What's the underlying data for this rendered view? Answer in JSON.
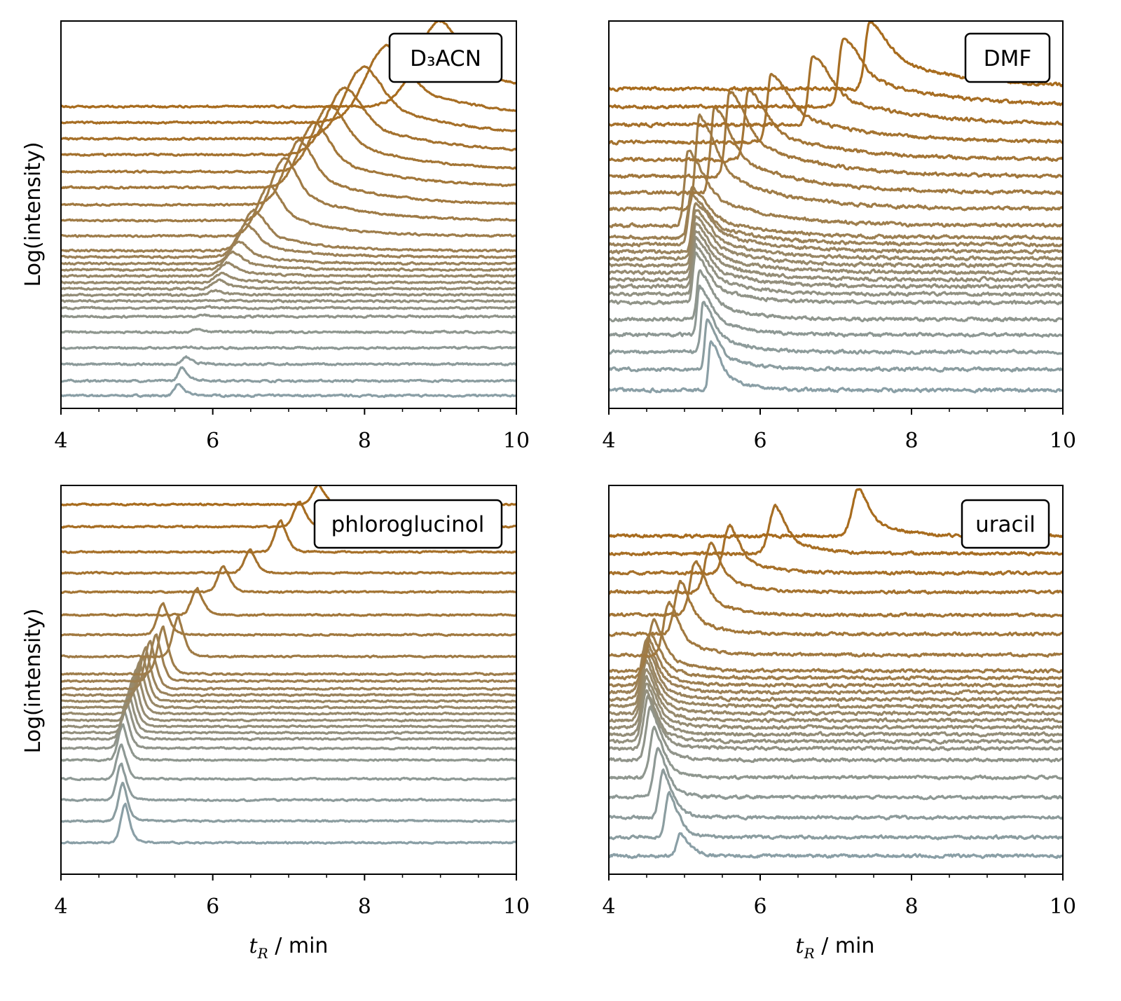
{
  "colors": {
    "first_trace": "#8a9fa6",
    "last_trace": "#a86c1e"
  },
  "chart_data": [
    {
      "type": "line",
      "legend": "D₃ACN",
      "legend_placement": "top-right",
      "xlabel": "t_R / min",
      "ylabel": "Log(intensity)",
      "xlim": [
        4,
        10
      ],
      "xticks": [
        "4",
        "6",
        "8",
        "10"
      ],
      "ylim": [
        0,
        100
      ],
      "grid": false,
      "traces": {
        "baseline": [
          3.3,
          7.1,
          11.4,
          15.6,
          19.7,
          23.7,
          25.9,
          27.7,
          29.3,
          30.9,
          32.5,
          34.2,
          35.8,
          37.4,
          39.1,
          40.7,
          44.5,
          48.5,
          52.6,
          57.0,
          61.1,
          65.5,
          69.6,
          73.8,
          77.9
        ],
        "peak_time": [
          5.55,
          5.6,
          5.65,
          5.72,
          5.8,
          5.87,
          5.93,
          5.98,
          6.03,
          6.08,
          6.13,
          6.2,
          6.27,
          6.35,
          6.45,
          6.55,
          6.75,
          6.95,
          7.15,
          7.35,
          7.55,
          7.75,
          8.0,
          8.3,
          9.0
        ],
        "peak_apex": [
          6.3,
          10.5,
          13.2,
          15.9,
          20.4,
          24.1,
          26.2,
          28.0,
          30.4,
          33.1,
          34.9,
          37.6,
          40.3,
          43.0,
          47.5,
          51.2,
          57.5,
          64.7,
          69.2,
          73.7,
          78.3,
          82.8,
          88.2,
          93.6,
          100
        ]
      }
    },
    {
      "type": "line",
      "legend": "DMF",
      "legend_placement": "top-right",
      "xlabel": "t_R / min",
      "ylabel": "",
      "xlim": [
        4,
        10
      ],
      "xticks": [
        "4",
        "6",
        "8",
        "10"
      ],
      "ylim": [
        0,
        100
      ],
      "grid": false,
      "traces": {
        "baseline": [
          4.7,
          10.1,
          14.6,
          19.0,
          23.0,
          27.3,
          29.5,
          31.5,
          33.3,
          35.1,
          36.9,
          38.7,
          40.5,
          42.3,
          44.1,
          47.2,
          51.5,
          55.7,
          59.9,
          64.2,
          68.7,
          73.2,
          77.9,
          82.5
        ],
        "peak_time": [
          5.35,
          5.3,
          5.25,
          5.2,
          5.2,
          5.15,
          5.15,
          5.15,
          5.15,
          5.15,
          5.15,
          5.15,
          5.15,
          5.1,
          5.1,
          5.05,
          5.2,
          5.4,
          5.6,
          5.85,
          6.15,
          6.7,
          7.1,
          7.45
        ],
        "peak_apex": [
          17.4,
          22.8,
          27.3,
          31.6,
          35.6,
          40.0,
          42.1,
          44.1,
          45.9,
          47.7,
          49.5,
          51.3,
          53.2,
          55.0,
          56.8,
          66.5,
          75.6,
          77.9,
          81.9,
          82.3,
          86.4,
          91.0,
          95.5,
          100
        ]
      }
    },
    {
      "type": "line",
      "legend": "phloroglucinol",
      "legend_placement": "top-right",
      "xlabel": "t_R / min",
      "ylabel": "Log(intensity)",
      "xlim": [
        4,
        10
      ],
      "xticks": [
        "4",
        "6",
        "8",
        "10"
      ],
      "ylim": [
        0,
        100
      ],
      "grid": false,
      "traces": {
        "baseline": [
          8.1,
          13.7,
          19.1,
          24.5,
          29.4,
          32.4,
          34.8,
          36.4,
          38.0,
          39.6,
          41.3,
          42.9,
          44.5,
          46.1,
          47.7,
          49.7,
          51.5,
          56.0,
          61.6,
          66.7,
          72.6,
          77.5,
          82.9,
          89.4,
          95.1
        ],
        "peak_time": [
          4.85,
          4.82,
          4.8,
          4.8,
          4.82,
          4.84,
          4.87,
          4.9,
          4.93,
          4.96,
          5.0,
          5.04,
          5.08,
          5.12,
          5.18,
          5.26,
          5.35,
          5.55,
          5.35,
          5.8,
          6.15,
          6.5,
          6.9,
          7.15,
          7.4
        ],
        "peak_apex": [
          18.0,
          23.4,
          28.5,
          33.5,
          38.4,
          42.0,
          44.7,
          46.5,
          48.6,
          51.0,
          52.8,
          54.6,
          56.4,
          58.2,
          60.0,
          61.8,
          63.6,
          66.3,
          69.9,
          73.5,
          79.3,
          83.4,
          91.2,
          96.0,
          100.2
        ]
      }
    },
    {
      "type": "line",
      "legend": "uracil",
      "legend_placement": "top-right",
      "xlabel": "t_R / min",
      "ylabel": "",
      "xlim": [
        4,
        10
      ],
      "xticks": [
        "4",
        "6",
        "8",
        "10"
      ],
      "ylim": [
        0,
        100
      ],
      "grid": false,
      "traces": {
        "baseline": [
          4.7,
          9.5,
          14.6,
          19.8,
          24.9,
          29.4,
          32.4,
          34.2,
          36.0,
          37.8,
          39.6,
          41.4,
          43.2,
          45.0,
          46.8,
          48.6,
          50.5,
          52.3,
          56.4,
          61.8,
          66.7,
          72.6,
          77.5,
          82.5,
          87.0
        ],
        "peak_time": [
          4.95,
          4.8,
          4.72,
          4.65,
          4.6,
          4.55,
          4.52,
          4.5,
          4.5,
          4.5,
          4.5,
          4.5,
          4.5,
          4.5,
          4.5,
          4.52,
          4.55,
          4.6,
          4.8,
          4.95,
          5.15,
          5.35,
          5.6,
          6.2,
          7.3
        ],
        "peak_apex": [
          10.5,
          20.9,
          26.7,
          32.4,
          38.0,
          42.9,
          45.6,
          47.4,
          49.2,
          51.0,
          52.8,
          54.6,
          56.4,
          58.2,
          60.0,
          60.9,
          61.8,
          65.4,
          69.9,
          75.3,
          80.7,
          85.2,
          89.7,
          94.8,
          99.3
        ]
      }
    }
  ],
  "labels": {
    "ylabel": "Log(intensity)",
    "xlabel_var": "t",
    "xlabel_sub": "R",
    "xlabel_unit": " / min"
  }
}
